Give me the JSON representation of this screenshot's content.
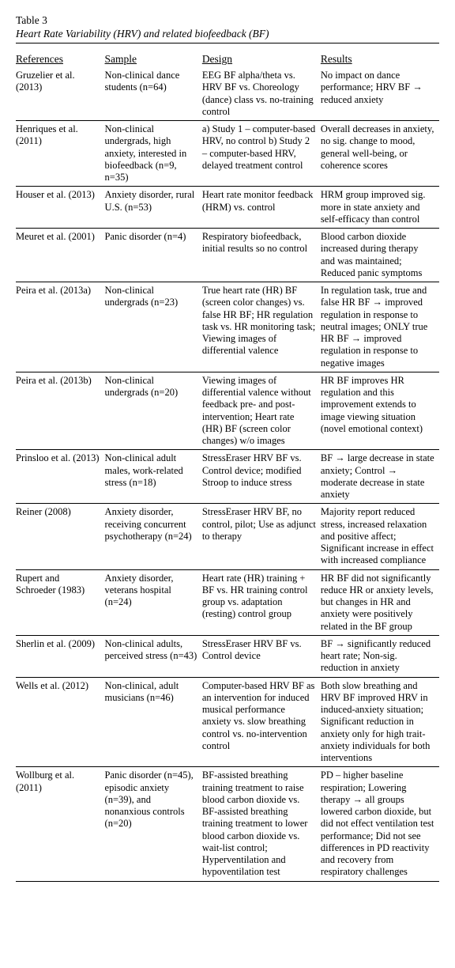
{
  "table": {
    "label": "Table 3",
    "title": "Heart Rate Variability (HRV) and related biofeedback (BF)",
    "columns": [
      "References",
      "Sample",
      "Design",
      "Results"
    ],
    "col_widths_pct": [
      21,
      23,
      28,
      28
    ],
    "header_fontsize_pt": 10,
    "cell_fontsize_pt": 9.5,
    "line_height": 1.22,
    "border_color": "#000000",
    "background_color": "#ffffff",
    "text_color": "#000000",
    "font_family": "Times New Roman",
    "rows": [
      {
        "ref": "Gruzelier et al. (2013)",
        "sample": "Non-clinical dance students (n=64)",
        "design": "EEG BF alpha/theta vs. HRV BF vs. Choreology (dance) class vs. no-training control",
        "results": "No impact on dance performance; HRV BF → reduced anxiety"
      },
      {
        "ref": "Henriques et al. (2011)",
        "sample": "Non-clinical undergrads, high anxiety, interested in biofeedback (n=9, n=35)",
        "design": "a) Study 1 – computer-based HRV, no control b) Study 2 – computer-based HRV, delayed treatment control",
        "results": "Overall decreases in anxiety, no sig. change to mood, general well-being, or coherence scores"
      },
      {
        "ref": "Houser et al. (2013)",
        "sample": "Anxiety disorder, rural U.S. (n=53)",
        "design": "Heart rate monitor feedback (HRM) vs. control",
        "results": "HRM group improved sig. more in state anxiety and self-efficacy than control"
      },
      {
        "ref": "Meuret et al. (2001)",
        "sample": "Panic disorder (n=4)",
        "design": "Respiratory biofeedback, initial results so no control",
        "results": "Blood carbon dioxide increased during therapy and was maintained; Reduced panic symptoms"
      },
      {
        "ref": "Peira et al. (2013a)",
        "sample": "Non-clinical undergrads (n=23)",
        "design": "True heart rate (HR) BF (screen color changes) vs. false HR BF; HR regulation task vs. HR monitoring task; Viewing images of differential valence",
        "results": "In regulation task, true and false HR BF → improved regulation in response to neutral images; ONLY true HR BF → improved regulation in response to negative images"
      },
      {
        "ref": "Peira et al. (2013b)",
        "sample": "Non-clinical undergrads (n=20)",
        "design": "Viewing images of differential valence without feedback pre- and post-intervention; Heart rate (HR) BF (screen color changes) w/o images",
        "results": "HR BF improves HR regulation and this improvement extends to image viewing situation (novel emotional context)"
      },
      {
        "ref": "Prinsloo et al. (2013)",
        "sample": "Non-clinical adult males, work-related stress (n=18)",
        "design": "StressEraser HRV BF vs. Control device; modified Stroop to induce stress",
        "results": "BF → large decrease in state anxiety; Control → moderate decrease in state anxiety"
      },
      {
        "ref": "Reiner (2008)",
        "sample": "Anxiety disorder, receiving concurrent psychotherapy (n=24)",
        "design": "StressEraser HRV BF, no control, pilot; Use as adjunct to therapy",
        "results": "Majority report reduced stress, increased relaxation and positive affect; Significant increase in effect with increased compliance"
      },
      {
        "ref": "Rupert and Schroeder (1983)",
        "sample": "Anxiety disorder, veterans hospital (n=24)",
        "design": "Heart rate (HR) training + BF vs. HR training control group vs. adaptation (resting) control group",
        "results": "HR BF did not significantly reduce HR or anxiety levels, but changes in HR and anxiety were positively related in the BF group"
      },
      {
        "ref": "Sherlin et al. (2009)",
        "sample": "Non-clinical adults, perceived stress (n=43)",
        "design": "StressEraser HRV BF vs. Control device",
        "results": "BF → significantly reduced heart rate; Non-sig. reduction in anxiety"
      },
      {
        "ref": "Wells et al. (2012)",
        "sample": "Non-clinical, adult musicians (n=46)",
        "design": "Computer-based HRV BF as an intervention for induced musical performance anxiety vs. slow breathing control vs. no-intervention control",
        "results": "Both slow breathing and HRV BF improved HRV in induced-anxiety situation; Significant reduction in anxiety only for high trait-anxiety individuals for both interventions"
      },
      {
        "ref": "Wollburg et al. (2011)",
        "sample": "Panic disorder (n=45), episodic anxiety (n=39), and nonanxious controls (n=20)",
        "design": "BF-assisted breathing training treatment to raise blood carbon dioxide vs. BF-assisted breathing training treatment to lower blood carbon dioxide vs. wait-list control; Hyperventilation and hypoventilation test",
        "results": "PD – higher baseline respiration; Lowering therapy → all groups lowered carbon dioxide, but did not effect ventilation test performance; Did not see differences in PD reactivity and recovery from respiratory challenges"
      }
    ]
  }
}
